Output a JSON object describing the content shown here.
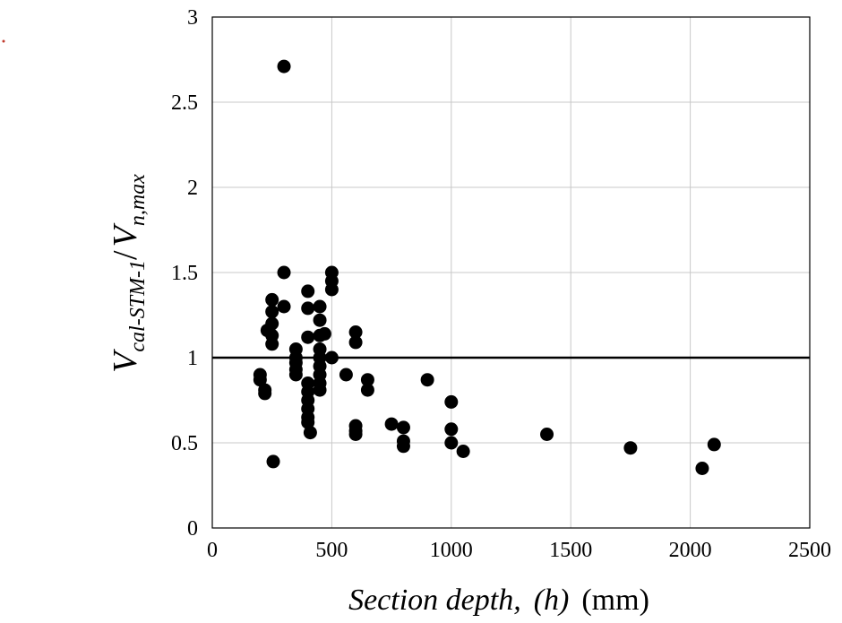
{
  "chart_data": {
    "type": "scatter",
    "xlabel": {
      "main": "Section depth,",
      "symbol": "(h)",
      "unit": "(mm)"
    },
    "ylabel": {
      "v1": "V",
      "sub1": "cal-STM-1",
      "slash": "/",
      "v2": "V",
      "sub2": "n,max"
    },
    "xlim": [
      0,
      2500
    ],
    "ylim": [
      0,
      3
    ],
    "xticks": [
      0,
      500,
      1000,
      1500,
      2000,
      2500
    ],
    "yticks": [
      0,
      0.5,
      1,
      1.5,
      2,
      2.5,
      3
    ],
    "xtick_labels": [
      "0",
      "500",
      "1000",
      "1500",
      "2000",
      "2500"
    ],
    "ytick_labels": [
      "0",
      "0.5",
      "1",
      "1.5",
      "2",
      "2.5",
      "3"
    ],
    "grid": true,
    "reference_line": {
      "y": 1
    },
    "marker_color": "#000000",
    "series": [
      {
        "points": [
          [
            300,
            2.71
          ],
          [
            200,
            0.9
          ],
          [
            200,
            0.87
          ],
          [
            220,
            0.81
          ],
          [
            220,
            0.79
          ],
          [
            230,
            1.16
          ],
          [
            250,
            1.34
          ],
          [
            250,
            1.27
          ],
          [
            250,
            1.2
          ],
          [
            250,
            1.13
          ],
          [
            250,
            1.08
          ],
          [
            255,
            0.39
          ],
          [
            300,
            1.5
          ],
          [
            300,
            1.3
          ],
          [
            350,
            1.05
          ],
          [
            350,
            1.0
          ],
          [
            350,
            0.97
          ],
          [
            350,
            0.93
          ],
          [
            350,
            0.9
          ],
          [
            400,
            1.39
          ],
          [
            400,
            1.29
          ],
          [
            400,
            1.12
          ],
          [
            400,
            0.85
          ],
          [
            400,
            0.8
          ],
          [
            400,
            0.75
          ],
          [
            400,
            0.7
          ],
          [
            400,
            0.65
          ],
          [
            400,
            0.62
          ],
          [
            410,
            0.56
          ],
          [
            450,
            1.3
          ],
          [
            450,
            1.22
          ],
          [
            450,
            1.13
          ],
          [
            450,
            1.05
          ],
          [
            450,
            1.0
          ],
          [
            450,
            0.95
          ],
          [
            450,
            0.9
          ],
          [
            450,
            0.85
          ],
          [
            450,
            0.81
          ],
          [
            470,
            1.14
          ],
          [
            500,
            1.5
          ],
          [
            500,
            1.45
          ],
          [
            500,
            1.4
          ],
          [
            500,
            1.0
          ],
          [
            560,
            0.9
          ],
          [
            600,
            1.15
          ],
          [
            600,
            1.09
          ],
          [
            600,
            0.6
          ],
          [
            600,
            0.57
          ],
          [
            600,
            0.55
          ],
          [
            650,
            0.87
          ],
          [
            650,
            0.81
          ],
          [
            750,
            0.61
          ],
          [
            800,
            0.59
          ],
          [
            800,
            0.51
          ],
          [
            800,
            0.48
          ],
          [
            900,
            0.87
          ],
          [
            1000,
            0.74
          ],
          [
            1000,
            0.58
          ],
          [
            1000,
            0.5
          ],
          [
            1050,
            0.45
          ],
          [
            1400,
            0.55
          ],
          [
            1750,
            0.47
          ],
          [
            2050,
            0.35
          ],
          [
            2100,
            0.49
          ]
        ]
      }
    ]
  }
}
